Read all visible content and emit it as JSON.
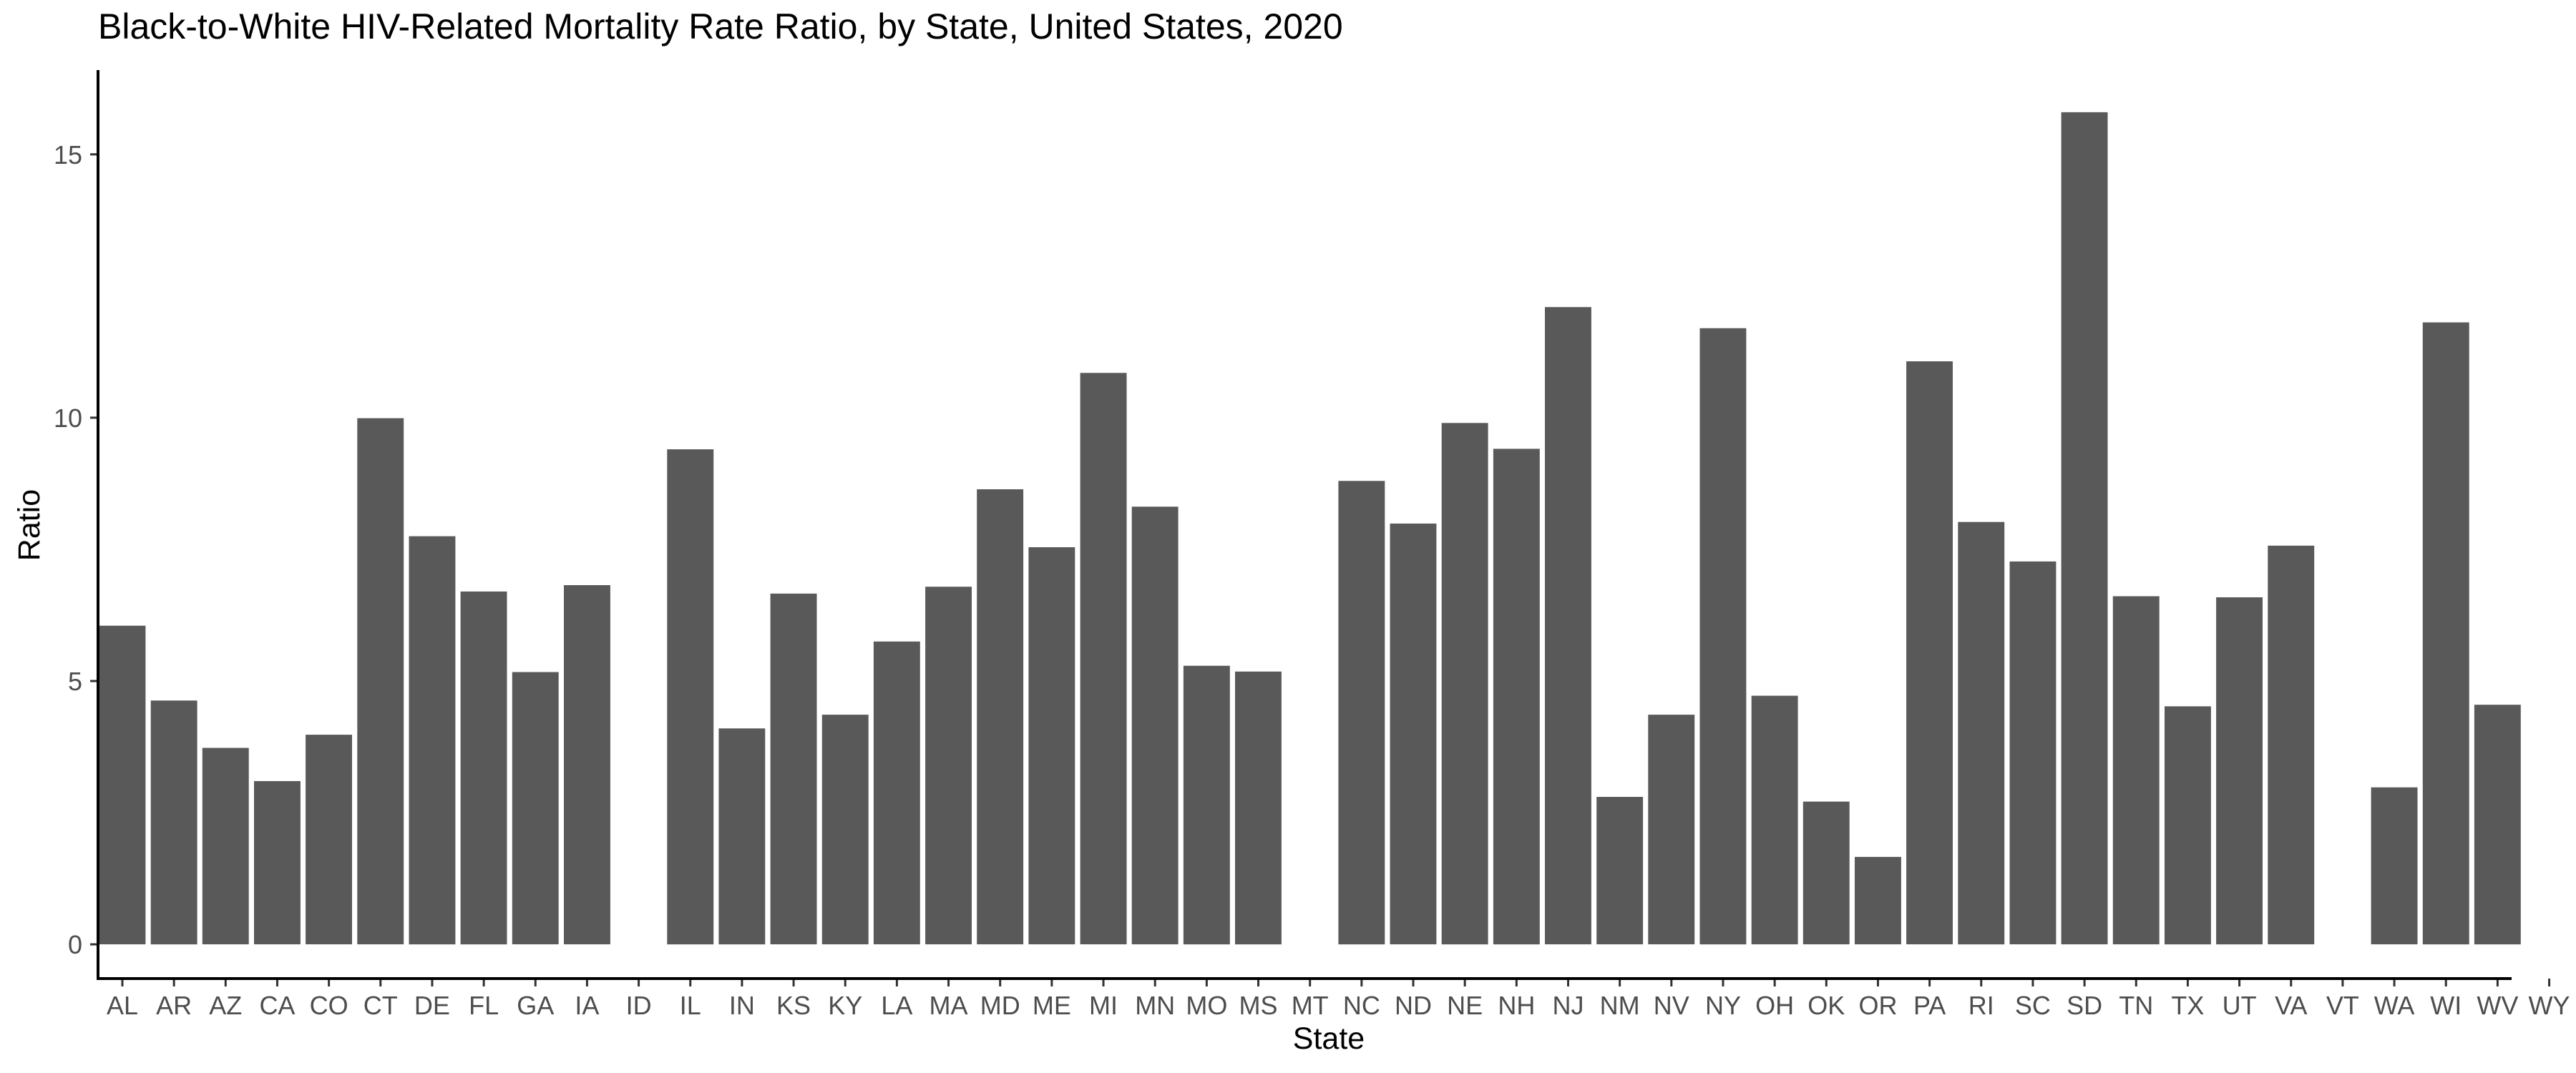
{
  "chart_data": {
    "type": "bar",
    "title": "Black-to-White HIV-Related Mortality Rate Ratio, by State, United States, 2020",
    "xlabel": "State",
    "ylabel": "Ratio",
    "ylim": [
      -0.65,
      16.6
    ],
    "yticks": [
      0,
      5,
      10,
      15
    ],
    "grid": false,
    "legend": "none",
    "bar_color": "#595959",
    "categories": [
      "AL",
      "AR",
      "AZ",
      "CA",
      "CO",
      "CT",
      "DE",
      "FL",
      "GA",
      "IA",
      "ID",
      "IL",
      "IN",
      "KS",
      "KY",
      "LA",
      "MA",
      "MD",
      "ME",
      "MI",
      "MN",
      "MO",
      "MS",
      "MT",
      "NC",
      "ND",
      "NE",
      "NH",
      "NJ",
      "NM",
      "NV",
      "NY",
      "OH",
      "OK",
      "OR",
      "PA",
      "RI",
      "SC",
      "SD",
      "TN",
      "TX",
      "UT",
      "VA",
      "VT",
      "WA",
      "WI",
      "WV",
      "WY"
    ],
    "values": [
      6.05,
      4.63,
      3.73,
      3.1,
      3.98,
      9.99,
      7.75,
      6.7,
      5.17,
      6.82,
      null,
      9.4,
      4.1,
      6.66,
      4.36,
      5.75,
      6.79,
      8.64,
      7.54,
      10.85,
      8.31,
      5.29,
      5.18,
      null,
      8.8,
      7.99,
      9.9,
      9.41,
      12.1,
      2.8,
      4.36,
      11.7,
      4.72,
      2.71,
      1.66,
      11.07,
      8.02,
      7.27,
      15.8,
      6.61,
      4.52,
      6.59,
      7.57,
      null,
      2.98,
      11.81,
      4.55,
      null
    ]
  }
}
